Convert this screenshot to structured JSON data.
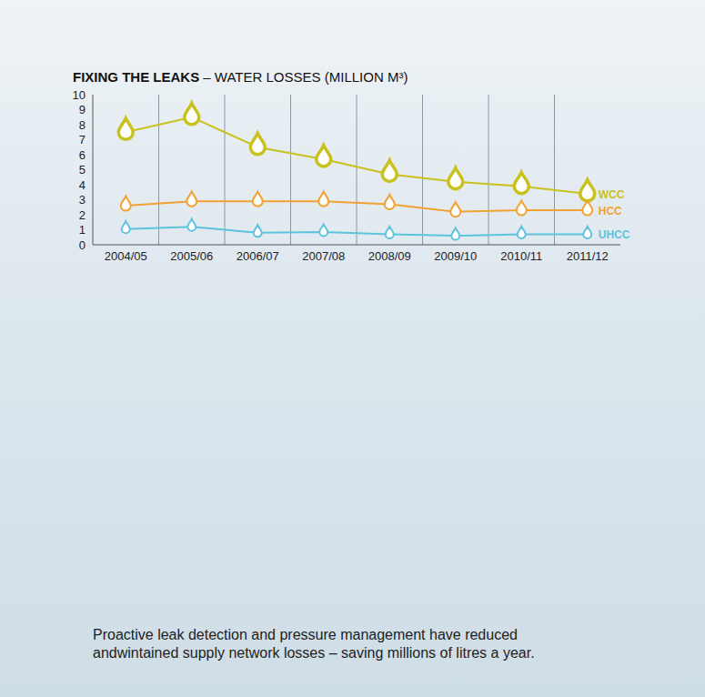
{
  "chart_data": {
    "type": "line",
    "title": "FIXING THE LEAKS – WATER LOSSES (MILLION M³)",
    "caption": "Proactive leak detection and pressure management have reduced andwintained supply network losses – saving millions of litres a year.",
    "categories": [
      "2004/05",
      "2005/06",
      "2006/07",
      "2007/08",
      "2008/09",
      "2009/10",
      "2010/11",
      "2011/12"
    ],
    "series": [
      {
        "name": "WCC",
        "color": "#c9c21e",
        "marker": "drop",
        "values": [
          7.5,
          8.5,
          6.5,
          5.7,
          4.7,
          4.2,
          3.9,
          3.4
        ]
      },
      {
        "name": "HCC",
        "color": "#f2a232",
        "marker": "drop",
        "values": [
          2.6,
          2.9,
          2.9,
          2.9,
          2.7,
          2.2,
          2.3,
          2.3
        ]
      },
      {
        "name": "UHCC",
        "color": "#5ec3dc",
        "marker": "drop",
        "values": [
          1.05,
          1.2,
          0.8,
          0.85,
          0.7,
          0.6,
          0.7,
          0.7
        ]
      }
    ],
    "ylim": [
      0,
      10
    ],
    "yticks": [
      0,
      1,
      2,
      3,
      4,
      5,
      6,
      7,
      8,
      9,
      10
    ],
    "grid": true
  }
}
